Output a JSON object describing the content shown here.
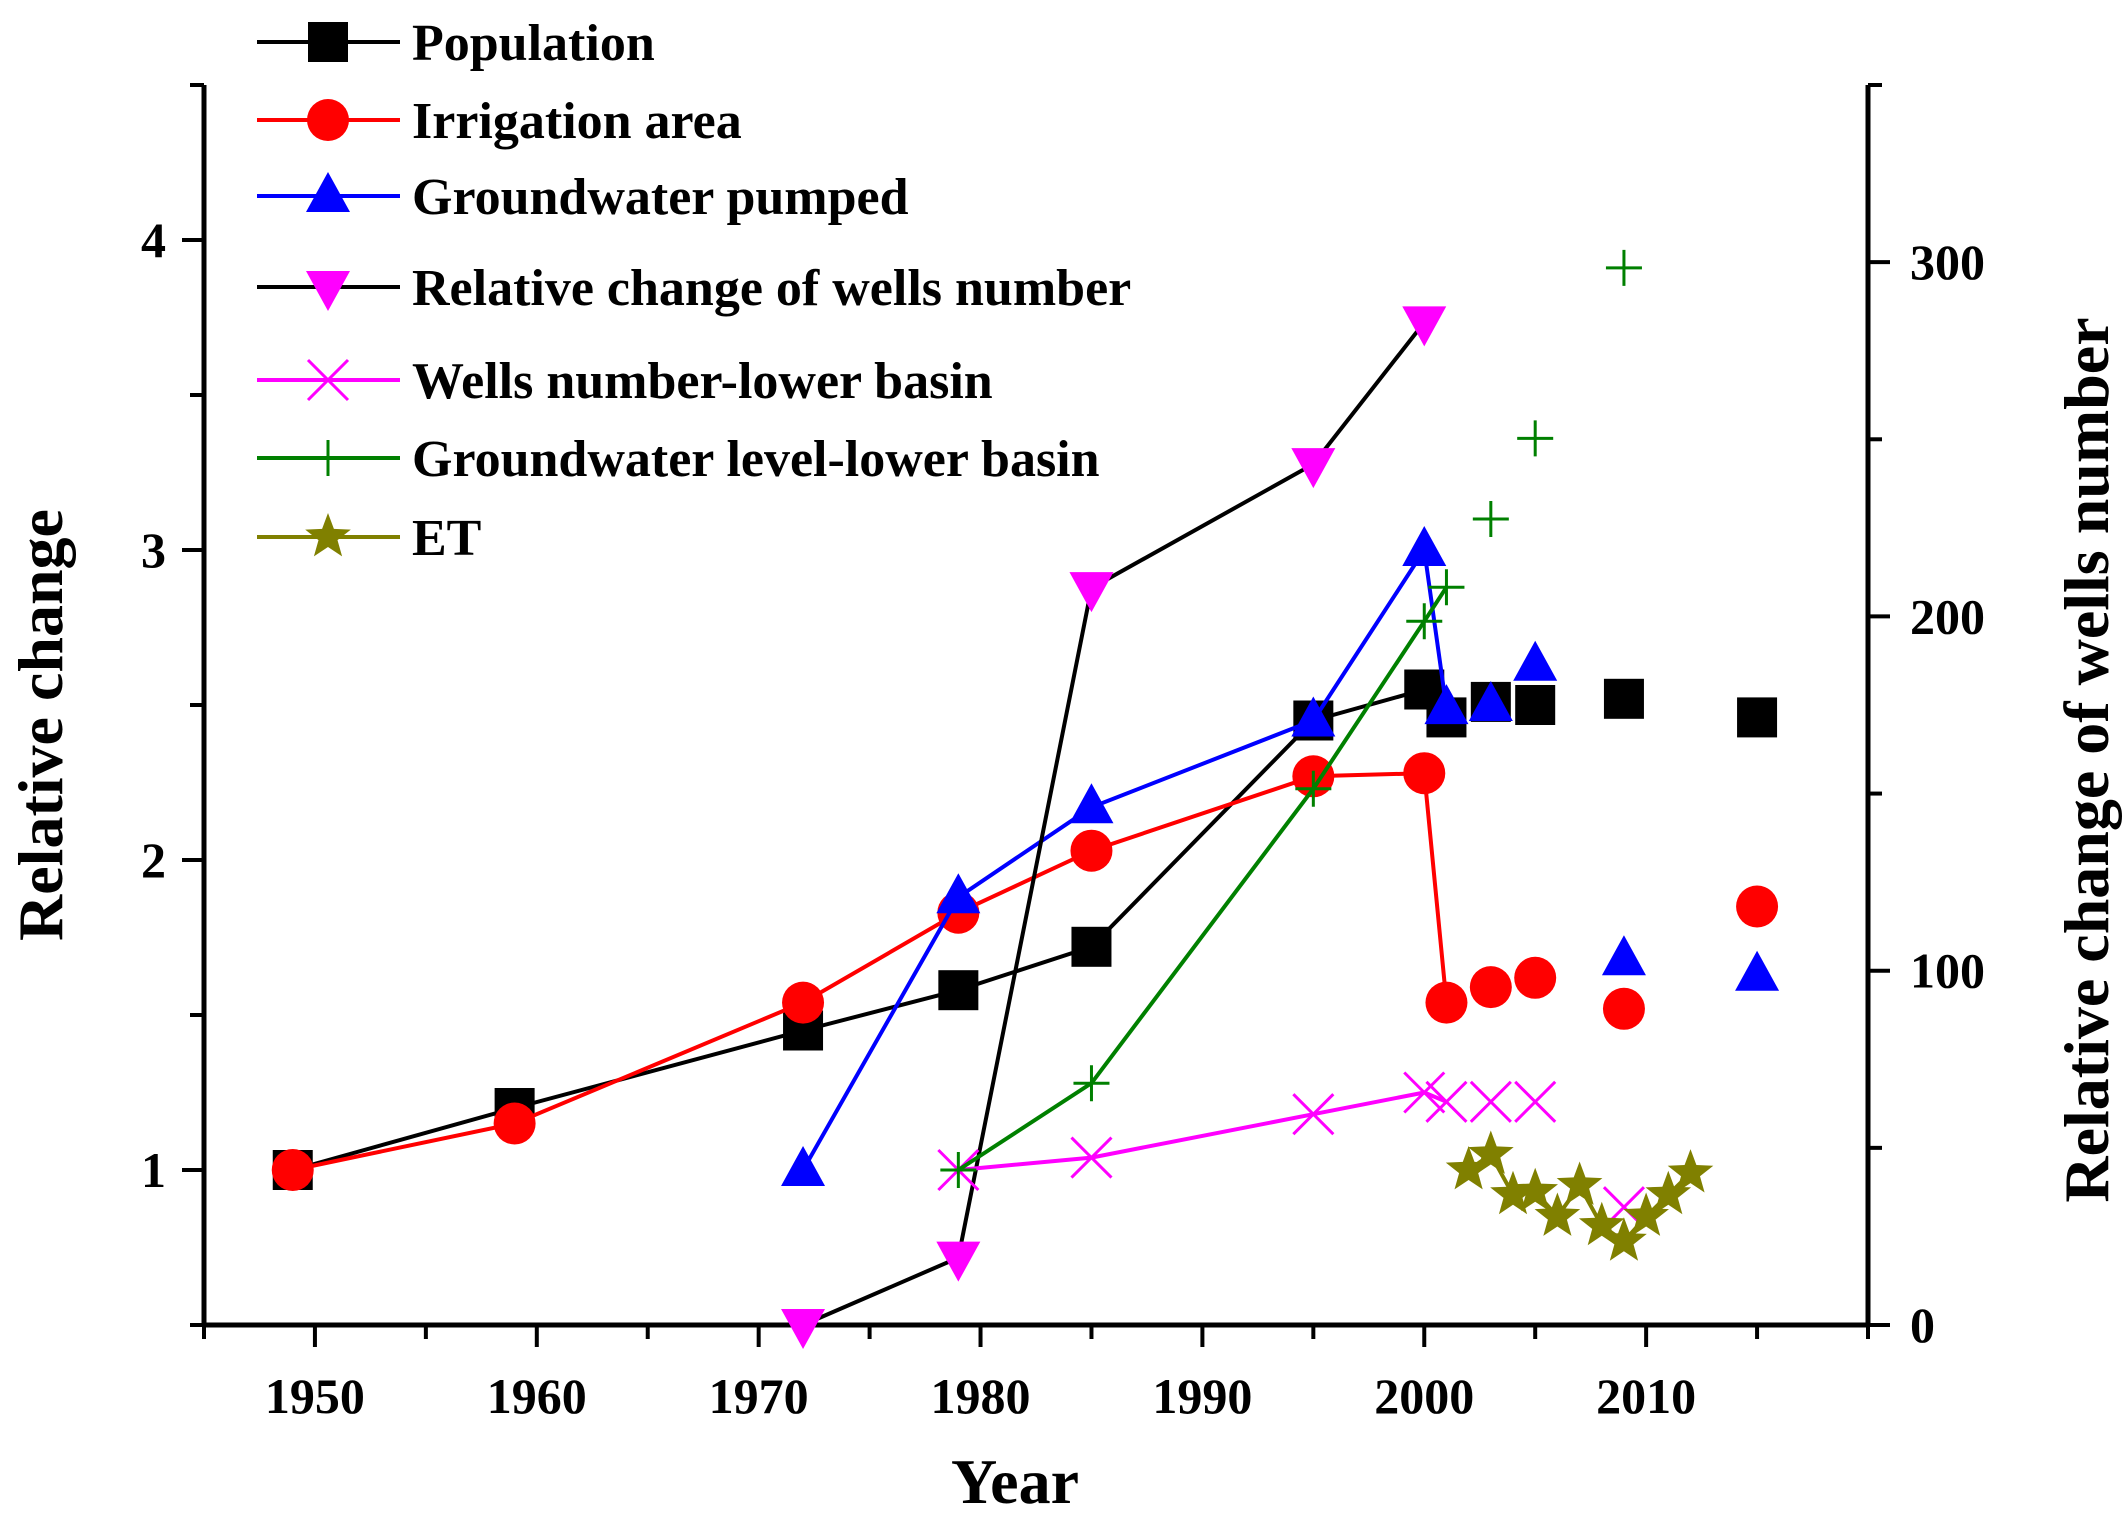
{
  "chart_data": {
    "type": "line",
    "xlabel": "Year",
    "ylabel": "Relative change",
    "y2label": "Relative change of wells number",
    "xlim": [
      1945,
      2020
    ],
    "ylim": [
      0.5,
      4.5
    ],
    "y2lim": [
      0,
      350
    ],
    "xticks": [
      1950,
      1960,
      1970,
      1980,
      1990,
      2000,
      2010
    ],
    "yticks": [
      1,
      2,
      3,
      4
    ],
    "y2ticks": [
      0,
      100,
      200,
      300
    ],
    "legend_position": "top-left",
    "series": [
      {
        "name": "Population",
        "axis": "left",
        "color": "#000000",
        "marker": "square",
        "points": [
          [
            1949,
            1.0
          ],
          [
            1959,
            1.2
          ],
          [
            1972,
            1.45
          ],
          [
            1979,
            1.58
          ],
          [
            1985,
            1.72
          ],
          [
            1995,
            2.45
          ],
          [
            2000,
            2.55
          ],
          [
            2001,
            2.46
          ],
          [
            2003,
            2.51
          ],
          [
            2005,
            2.5
          ],
          [
            2009,
            2.52
          ],
          [
            2015,
            2.46
          ]
        ],
        "connected_count": 7
      },
      {
        "name": "Irrigation area",
        "axis": "left",
        "color": "#ff0000",
        "marker": "circle",
        "points": [
          [
            1949,
            1.0
          ],
          [
            1959,
            1.15
          ],
          [
            1972,
            1.54
          ],
          [
            1979,
            1.83
          ],
          [
            1985,
            2.03
          ],
          [
            1995,
            2.27
          ],
          [
            2000,
            2.28
          ],
          [
            2001,
            1.54
          ],
          [
            2003,
            1.59
          ],
          [
            2005,
            1.62
          ],
          [
            2009,
            1.52
          ],
          [
            2015,
            1.85
          ]
        ],
        "connected_count": 8
      },
      {
        "name": "Groundwater pumped",
        "axis": "left",
        "color": "#0000ff",
        "marker": "triangle-up",
        "points": [
          [
            1972,
            1.0
          ],
          [
            1979,
            1.88
          ],
          [
            1985,
            2.17
          ],
          [
            1995,
            2.45
          ],
          [
            2000,
            3.0
          ],
          [
            2001,
            2.49
          ],
          [
            2003,
            2.5
          ],
          [
            2005,
            2.63
          ],
          [
            2009,
            1.68
          ],
          [
            2015,
            1.63
          ]
        ],
        "connected_count": 6
      },
      {
        "name": "Relative change of wells number",
        "axis": "right",
        "color": "#ff00ff",
        "line_color": "#000000",
        "marker": "triangle-down",
        "points": [
          [
            1972,
            0
          ],
          [
            1979,
            19
          ],
          [
            1985,
            208
          ],
          [
            1995,
            243
          ],
          [
            2000,
            283
          ]
        ],
        "connected_count": 5
      },
      {
        "name": "Wells number-lower basin",
        "axis": "left",
        "color": "#ff00ff",
        "marker": "x",
        "points": [
          [
            1979,
            1.0
          ],
          [
            1985,
            1.04
          ],
          [
            1995,
            1.18
          ],
          [
            2000,
            1.25
          ],
          [
            2001,
            1.22
          ],
          [
            2003,
            1.22
          ],
          [
            2005,
            1.22
          ],
          [
            2009,
            0.88
          ]
        ],
        "connected_count": 5
      },
      {
        "name": "Groundwater level-lower basin",
        "axis": "left",
        "color": "#008000",
        "marker": "plus",
        "points": [
          [
            1979,
            1.0
          ],
          [
            1985,
            1.28
          ],
          [
            1995,
            2.23
          ],
          [
            2000,
            2.77
          ],
          [
            2001,
            2.88
          ],
          [
            2003,
            3.1
          ],
          [
            2005,
            3.36
          ],
          [
            2009,
            3.91
          ]
        ],
        "connected_count": 5
      },
      {
        "name": "ET",
        "axis": "left",
        "color": "#808000",
        "marker": "star",
        "points": [
          [
            2002,
            1.0
          ],
          [
            2003,
            1.05
          ],
          [
            2004,
            0.92
          ],
          [
            2005,
            0.93
          ],
          [
            2006,
            0.85
          ],
          [
            2007,
            0.95
          ],
          [
            2008,
            0.82
          ],
          [
            2009,
            0.77
          ],
          [
            2010,
            0.85
          ],
          [
            2011,
            0.92
          ],
          [
            2012,
            0.99
          ]
        ],
        "connected_count": 11
      }
    ]
  }
}
